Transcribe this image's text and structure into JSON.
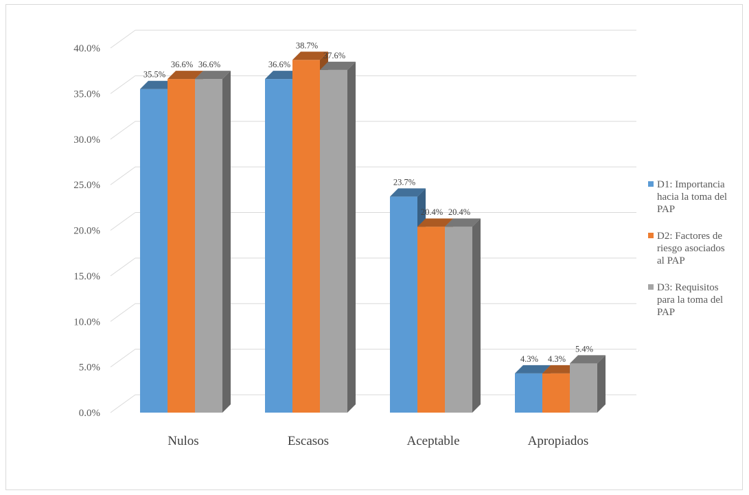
{
  "chart_data": {
    "type": "bar",
    "style": "3d-clustered-column",
    "categories": [
      "Nulos",
      "Escasos",
      "Aceptable",
      "Apropiados"
    ],
    "series": [
      {
        "name": [
          "D1: Importancia",
          "hacia la toma del",
          "PAP"
        ],
        "color": "#5b9bd5",
        "values": [
          35.5,
          36.6,
          23.7,
          4.3
        ]
      },
      {
        "name": [
          "D2: Factores de",
          "riesgo asociados",
          "al PAP"
        ],
        "color": "#ed7d31",
        "values": [
          36.6,
          38.7,
          20.4,
          4.3
        ]
      },
      {
        "name": [
          "D3: Requisitos",
          "para la toma del",
          "PAP"
        ],
        "color": "#a5a5a5",
        "values": [
          36.6,
          37.6,
          20.4,
          5.4
        ]
      }
    ],
    "y_ticks": [
      "0.0%",
      "5.0%",
      "10.0%",
      "15.0%",
      "20.0%",
      "25.0%",
      "30.0%",
      "35.0%",
      "40.0%"
    ],
    "ylim": [
      0,
      40
    ],
    "ytick_step": 5,
    "value_suffix": "%",
    "grid": true,
    "legend_position": "right"
  }
}
